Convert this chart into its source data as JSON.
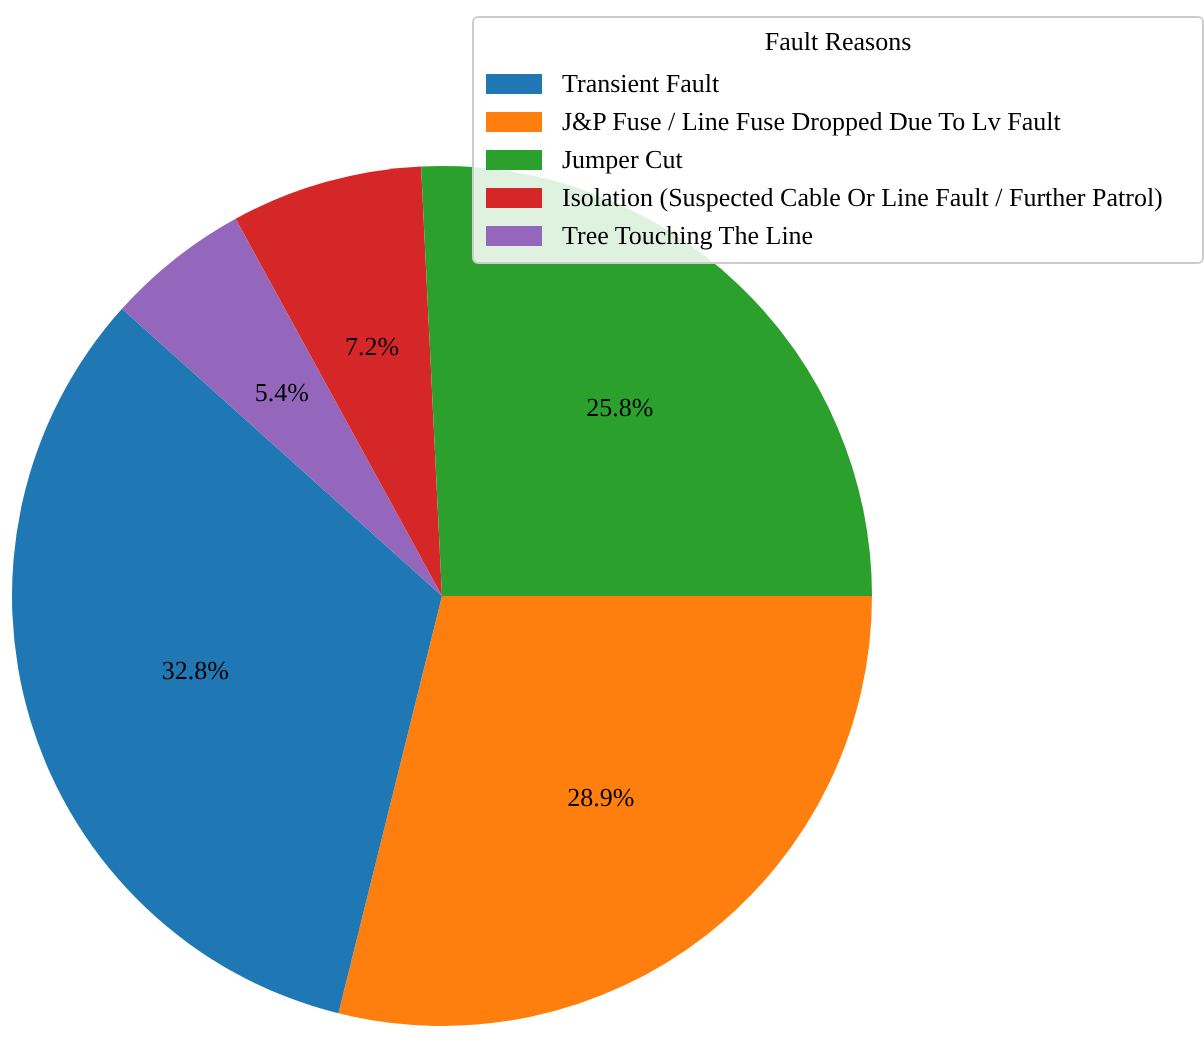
{
  "chart_data": {
    "type": "pie",
    "legend_title": "Fault Reasons",
    "legend": "top right",
    "value_labels": [
      "32.8%",
      "28.9%",
      "25.8%",
      "7.2%",
      "5.4%"
    ],
    "categories": [
      "Transient Fault",
      "J&P Fuse / Line Fuse Dropped Due To Lv Fault",
      "Jumper Cut",
      "Isolation (Suspected Cable Or Line Fault / Further Patrol)",
      "Tree Touching The Line"
    ],
    "values": [
      32.8,
      28.9,
      25.8,
      7.2,
      5.4
    ],
    "colors": [
      "#1f77b4",
      "#ff7f0e",
      "#2ca02c",
      "#d62728",
      "#9467bd"
    ]
  }
}
